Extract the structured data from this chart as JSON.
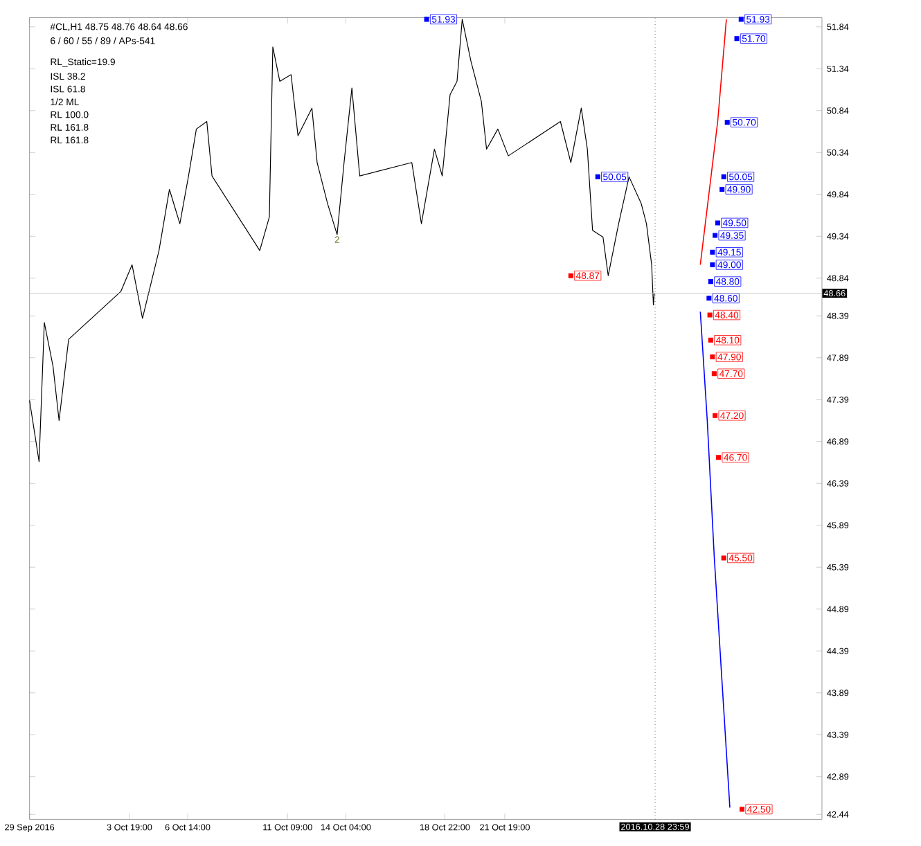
{
  "chart_data": {
    "type": "line",
    "title": "#CL,H1 48.75 48.76 48.64 48.66",
    "subtitle": "6 / 60 / 55 / 89 / APs-541",
    "xlim": [
      "2016-09-29T00:00",
      "2016-11-06T00:00"
    ],
    "ylim": [
      42.38,
      51.95
    ],
    "xticks": [
      {
        "value": "2016-09-29T00:00",
        "label": "29 Sep 2016"
      },
      {
        "value": "2016-10-03T19:00",
        "label": "3 Oct 19:00"
      },
      {
        "value": "2016-10-06T14:00",
        "label": "6 Oct 14:00"
      },
      {
        "value": "2016-10-11T09:00",
        "label": "11 Oct 09:00"
      },
      {
        "value": "2016-10-14T04:00",
        "label": "14 Oct 04:00"
      },
      {
        "value": "2016-10-18T22:00",
        "label": "18 Oct 22:00"
      },
      {
        "value": "2016-10-21T19:00",
        "label": "21 Oct 19:00"
      }
    ],
    "yticks": [
      51.84,
      51.34,
      50.84,
      50.34,
      49.84,
      49.34,
      48.84,
      48.39,
      47.89,
      47.39,
      46.89,
      46.39,
      45.89,
      45.39,
      44.89,
      44.39,
      43.89,
      43.39,
      42.89,
      42.44
    ],
    "marker": "none",
    "series": [
      {
        "color": "#000000",
        "x": [
          "2016-09-29T00:00",
          "2016-09-29T11:00",
          "2016-09-29T17:00",
          "2016-09-30T03:00",
          "2016-09-30T10:00",
          "2016-09-30T21:00",
          "2016-10-03T09:00",
          "2016-10-03T22:00",
          "2016-10-04T10:00",
          "2016-10-05T05:00",
          "2016-10-05T17:00",
          "2016-10-06T05:00",
          "2016-10-06T15:00",
          "2016-10-07T00:00",
          "2016-10-07T12:00",
          "2016-10-07T18:00",
          "2016-10-10T01:00",
          "2016-10-10T12:00",
          "2016-10-10T16:00",
          "2016-10-11T00:00",
          "2016-10-11T13:00",
          "2016-10-11T21:00",
          "2016-10-12T13:00",
          "2016-10-12T19:00",
          "2016-10-13T07:00",
          "2016-10-13T18:00",
          "2016-10-14T02:00",
          "2016-10-14T11:00",
          "2016-10-14T20:00",
          "2016-10-17T08:00",
          "2016-10-17T19:00",
          "2016-10-18T10:00",
          "2016-10-18T19:00",
          "2016-10-19T04:00",
          "2016-10-19T12:00",
          "2016-10-19T18:00",
          "2016-10-20T04:00",
          "2016-10-20T16:00",
          "2016-10-20T22:00",
          "2016-10-21T11:00",
          "2016-10-21T23:00",
          "2016-10-24T11:00",
          "2016-10-24T23:00",
          "2016-10-25T11:00",
          "2016-10-25T18:00",
          "2016-10-26T00:00",
          "2016-10-26T12:00",
          "2016-10-26T18:00",
          "2016-10-27T06:00",
          "2016-10-27T18:00",
          "2016-10-28T08:00",
          "2016-10-28T14:00",
          "2016-10-28T20:00",
          "2016-10-28T22:00",
          "2016-10-28T23:00"
        ],
        "values": [
          47.38,
          46.65,
          48.31,
          47.79,
          47.14,
          48.11,
          48.68,
          49.0,
          48.36,
          49.17,
          49.9,
          49.49,
          50.06,
          50.62,
          50.71,
          50.06,
          49.17,
          49.57,
          51.6,
          51.19,
          51.27,
          50.54,
          50.87,
          50.22,
          49.73,
          49.36,
          50.22,
          51.11,
          50.06,
          50.22,
          49.49,
          50.38,
          50.06,
          51.03,
          51.19,
          51.93,
          51.43,
          50.95,
          50.38,
          50.62,
          50.3,
          50.71,
          50.22,
          50.87,
          50.38,
          49.41,
          49.33,
          48.87,
          49.49,
          50.05,
          49.73,
          49.49,
          49.0,
          48.52,
          48.66
        ]
      },
      {
        "color": "#ff0000",
        "x": [
          "2016-10-31T04:00",
          "2016-11-01T00:00",
          "2016-11-01T10:00"
        ],
        "values": [
          49.0,
          50.71,
          51.93
        ]
      },
      {
        "color": "#0000ff",
        "x": [
          "2016-10-31T04:00",
          "2016-10-31T12:00",
          "2016-10-31T20:00",
          "2016-11-01T14:00"
        ],
        "values": [
          48.44,
          47.14,
          45.52,
          42.52
        ]
      },
      {
        "type": "scatter",
        "marker": "square",
        "color": "#0000ff",
        "x": [
          "2016-10-18T01:00",
          "2016-11-02T03:00",
          "2016-11-01T22:00",
          "2016-11-01T11:00",
          "2016-10-26T06:00",
          "2016-11-01T07:00",
          "2016-11-01T05:00",
          "2016-11-01T00:00",
          "2016-10-31T21:00",
          "2016-10-31T18:00",
          "2016-10-31T18:00",
          "2016-10-31T16:00",
          "2016-10-31T14:00"
        ],
        "values": [
          51.93,
          51.93,
          51.7,
          50.7,
          50.05,
          50.05,
          49.9,
          49.5,
          49.35,
          49.15,
          49.0,
          48.8,
          48.6
        ],
        "value_labels": [
          "51.93",
          "51.93",
          "51.70",
          "50.70",
          "50.05",
          "50.05",
          "49.90",
          "49.50",
          "49.35",
          "49.15",
          "49.00",
          "48.80",
          "48.60"
        ]
      },
      {
        "type": "scatter",
        "marker": "square",
        "color": "#ff0000",
        "x": [
          "2016-10-24T23:00",
          "2016-10-31T15:00",
          "2016-10-31T16:00",
          "2016-10-31T18:00",
          "2016-10-31T20:00",
          "2016-10-31T21:00",
          "2016-11-01T01:00",
          "2016-11-01T07:00",
          "2016-11-02T04:00"
        ],
        "values": [
          48.87,
          48.4,
          48.1,
          47.9,
          47.7,
          47.2,
          46.7,
          45.5,
          42.5
        ],
        "value_labels": [
          "48.87",
          "48.40",
          "48.10",
          "47.90",
          "47.70",
          "47.20",
          "46.70",
          "45.50",
          "42.50"
        ]
      }
    ],
    "ref_lines": [
      {
        "axis": "y",
        "value": 48.66,
        "label": "48.66",
        "color": "#c0c0c0"
      },
      {
        "axis": "x",
        "value": "2016-10-28T23:59",
        "label": "2016.10.28 23:59",
        "color": "#000000",
        "line_style": "dotted"
      }
    ],
    "annotations": [
      "RL_Static=19.9",
      {
        "text": "2",
        "x": "2016-10-13T18:00",
        "y": 49.36
      },
      "ISL 38.2",
      "ISL 61.8",
      "1/2 ML",
      "RL 100.0",
      "RL 161.8",
      "RL 161.8"
    ]
  }
}
